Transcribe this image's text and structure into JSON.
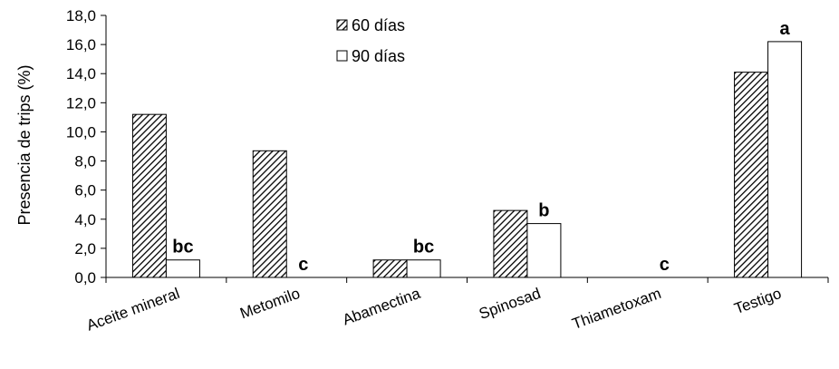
{
  "chart_data": {
    "type": "bar",
    "title": "",
    "xlabel": "",
    "ylabel": "Presencia de trips (%)",
    "ylim": [
      0,
      18
    ],
    "yticks": [
      "0,0",
      "2,0",
      "4,0",
      "6,0",
      "8,0",
      "10,0",
      "12,0",
      "14,0",
      "16,0",
      "18,0"
    ],
    "categories": [
      "Aceite mineral",
      "Metomilo",
      "Abamectina",
      "Spinosad",
      "Thiametoxam",
      "Testigo"
    ],
    "series": [
      {
        "name": "60 días",
        "values": [
          11.2,
          8.7,
          1.2,
          4.6,
          0.0,
          14.1
        ],
        "pattern": "hatched",
        "color": "#000000"
      },
      {
        "name": "90 días",
        "values": [
          1.2,
          0.0,
          1.2,
          3.7,
          0.0,
          16.2
        ],
        "pattern": "solid",
        "color": "#ffffff"
      }
    ],
    "annotations": [
      "bc",
      "c",
      "bc",
      "b",
      "c",
      "a"
    ],
    "legend_position": "top-center",
    "grid": false
  }
}
